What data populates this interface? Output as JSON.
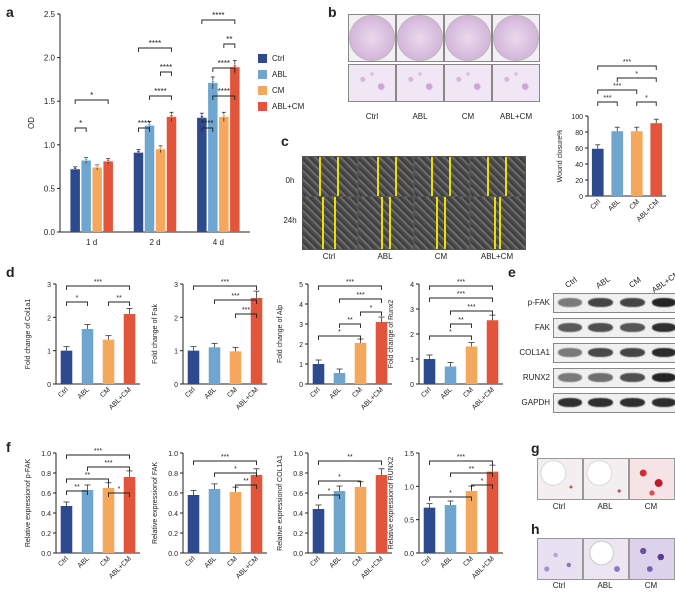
{
  "panels": {
    "a": "a",
    "b": "b",
    "c": "c",
    "d": "d",
    "e": "e",
    "f": "f",
    "g": "g",
    "h": "h"
  },
  "colors": {
    "Ctrl": "#2d4a8f",
    "ABL": "#6fa6cf",
    "CM": "#f5a85b",
    "ABL+CM": "#e2553a"
  },
  "groups": [
    "Ctrl",
    "ABL",
    "CM",
    "ABL+CM"
  ],
  "legend": [
    "Ctrl",
    "ABL",
    "CM",
    "ABL+CM"
  ],
  "b_labels": [
    "Ctrl",
    "ABL",
    "CM",
    "ABL+CM"
  ],
  "c_labels": [
    "Ctrl",
    "ABL",
    "CM",
    "ABL+CM"
  ],
  "c_rows": [
    "0h",
    "24h"
  ],
  "e_cols": [
    "Ctrl",
    "ABL",
    "CM",
    "ABL+CM"
  ],
  "e_rows": [
    "p-FAK",
    "FAK",
    "COL1A1",
    "RUNX2",
    "GAPDH"
  ],
  "g_labels": [
    "Ctrl",
    "ABL",
    "CM"
  ],
  "h_labels": [
    "Ctrl",
    "ABL",
    "CM"
  ],
  "chart_data": [
    {
      "id": "a",
      "type": "bar",
      "ylabel": "OD",
      "ylim": [
        0,
        2.5
      ],
      "yticks": [
        0,
        0.5,
        1.0,
        1.5,
        2.0,
        2.5
      ],
      "ytick_labels": [
        "0.0",
        "0.5",
        "1.0",
        "1.5",
        "2.0",
        "2.5"
      ],
      "categories": [
        "1 d",
        "2 d",
        "4 d"
      ],
      "series": [
        {
          "name": "Ctrl",
          "values": [
            0.72,
            0.91,
            1.31
          ]
        },
        {
          "name": "ABL",
          "values": [
            0.82,
            1.22,
            1.71
          ]
        },
        {
          "name": "CM",
          "values": [
            0.74,
            0.95,
            1.32
          ]
        },
        {
          "name": "ABL+CM",
          "values": [
            0.81,
            1.32,
            1.89
          ]
        }
      ],
      "annotations": [
        "*",
        "*",
        "****",
        "****",
        "****",
        "****",
        "****",
        "****",
        "**",
        "****"
      ]
    },
    {
      "id": "b",
      "type": "bar",
      "ylabel": "Wound closure%",
      "ylim": [
        0,
        100
      ],
      "yticks": [
        0,
        20,
        40,
        60,
        80,
        100
      ],
      "ytick_labels": [
        "0",
        "20",
        "40",
        "60",
        "80",
        "100"
      ],
      "categories": [
        "Ctrl",
        "ABL",
        "CM",
        "ABL+CM"
      ],
      "values": [
        59,
        81,
        81,
        91
      ],
      "annotations": [
        "***",
        "*",
        "***",
        "**",
        "*"
      ]
    },
    {
      "id": "d1",
      "type": "bar",
      "ylabel": "Fold change of Col1a1",
      "ylim": [
        0,
        3
      ],
      "yticks": [
        0,
        1,
        2,
        3
      ],
      "ytick_labels": [
        "0",
        "1",
        "2",
        "3"
      ],
      "categories": [
        "Ctrl",
        "ABL",
        "CM",
        "ABL+CM"
      ],
      "values": [
        1.0,
        1.65,
        1.33,
        2.1
      ],
      "annotations": [
        "***",
        "*",
        "**"
      ]
    },
    {
      "id": "d2",
      "type": "bar",
      "ylabel": "Fold change of Fak",
      "ylim": [
        0,
        3
      ],
      "yticks": [
        0,
        1,
        2,
        3
      ],
      "ytick_labels": [
        "0",
        "1",
        "2",
        "3"
      ],
      "categories": [
        "Ctrl",
        "ABL",
        "CM",
        "ABL+CM"
      ],
      "values": [
        1.0,
        1.1,
        0.98,
        2.58
      ],
      "annotations": [
        "***",
        "***",
        "***"
      ]
    },
    {
      "id": "d3",
      "type": "bar",
      "ylabel": "Fold change of Alp",
      "ylim": [
        0,
        5
      ],
      "yticks": [
        0,
        1,
        2,
        3,
        4,
        5
      ],
      "ytick_labels": [
        "0",
        "1",
        "2",
        "3",
        "4",
        "5"
      ],
      "categories": [
        "Ctrl",
        "ABL",
        "CM",
        "ABL+CM"
      ],
      "values": [
        1.0,
        0.55,
        2.05,
        3.1
      ],
      "annotations": [
        "***",
        "***",
        "*",
        "**",
        "*"
      ]
    },
    {
      "id": "d4",
      "type": "bar",
      "ylabel": "Fold change of Runx2",
      "ylim": [
        0,
        4
      ],
      "yticks": [
        0,
        1,
        2,
        3,
        4
      ],
      "ytick_labels": [
        "0",
        "1",
        "2",
        "3",
        "4"
      ],
      "categories": [
        "Ctrl",
        "ABL",
        "CM",
        "ABL+CM"
      ],
      "values": [
        1.0,
        0.7,
        1.5,
        2.55
      ],
      "annotations": [
        "***",
        "***",
        "*",
        "***",
        "**"
      ]
    },
    {
      "id": "f1",
      "type": "bar",
      "ylabel": "Relative expressionof p-FAK",
      "ylim": [
        0,
        1.0
      ],
      "yticks": [
        0,
        0.2,
        0.4,
        0.6,
        0.8,
        1.0
      ],
      "ytick_labels": [
        "0.0",
        "0.2",
        "0.4",
        "0.6",
        "0.8",
        "1.0"
      ],
      "categories": [
        "Ctrl",
        "ABL",
        "CM",
        "ABL+CM"
      ],
      "values": [
        0.47,
        0.63,
        0.65,
        0.76
      ],
      "annotations": [
        "***",
        "***",
        "**",
        "**",
        "*"
      ]
    },
    {
      "id": "f2",
      "type": "bar",
      "ylabel": "Relative expressionof FAK",
      "ylim": [
        0,
        1.0
      ],
      "yticks": [
        0,
        0.2,
        0.4,
        0.6,
        0.8,
        1.0
      ],
      "ytick_labels": [
        "0.0",
        "0.2",
        "0.4",
        "0.6",
        "0.8",
        "1.0"
      ],
      "categories": [
        "Ctrl",
        "ABL",
        "CM",
        "ABL+CM"
      ],
      "values": [
        0.58,
        0.64,
        0.61,
        0.78
      ],
      "annotations": [
        "***",
        "*",
        "**"
      ]
    },
    {
      "id": "f3",
      "type": "bar",
      "ylabel": "Relative expressionof COL1A1",
      "ylim": [
        0,
        1.0
      ],
      "yticks": [
        0,
        0.2,
        0.4,
        0.6,
        0.8,
        1.0
      ],
      "ytick_labels": [
        "0.0",
        "0.2",
        "0.4",
        "0.6",
        "0.8",
        "1.0"
      ],
      "categories": [
        "Ctrl",
        "ABL",
        "CM",
        "ABL+CM"
      ],
      "values": [
        0.44,
        0.62,
        0.66,
        0.78
      ],
      "annotations": [
        "**",
        "*",
        "*"
      ]
    },
    {
      "id": "f4",
      "type": "bar",
      "ylabel": "Relative expressionof RUNX2",
      "ylim": [
        0,
        1.5
      ],
      "yticks": [
        0,
        0.5,
        1.0,
        1.5
      ],
      "ytick_labels": [
        "0.0",
        "0.5",
        "1.0",
        "1.5"
      ],
      "categories": [
        "Ctrl",
        "ABL",
        "CM",
        "ABL+CM"
      ],
      "values": [
        0.68,
        0.72,
        0.93,
        1.22
      ],
      "annotations": [
        "***",
        "**",
        "*",
        "*"
      ]
    }
  ]
}
